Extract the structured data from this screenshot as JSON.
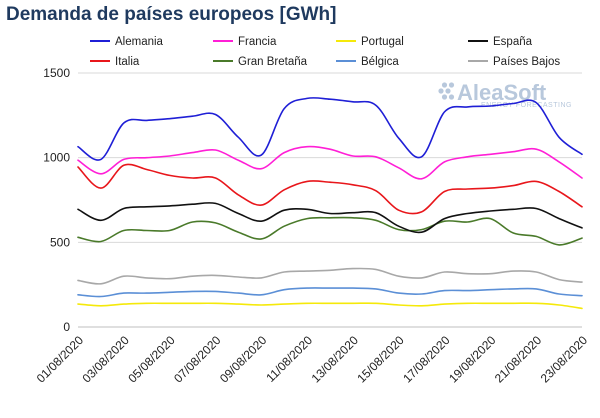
{
  "chart_data": {
    "type": "line",
    "title": "Demanda de países europeos [GWh]",
    "xlabel": "",
    "ylabel": "",
    "x": [
      "01/08/2020",
      "02/08/2020",
      "03/08/2020",
      "04/08/2020",
      "05/08/2020",
      "06/08/2020",
      "07/08/2020",
      "08/08/2020",
      "09/08/2020",
      "10/08/2020",
      "11/08/2020",
      "12/08/2020",
      "13/08/2020",
      "14/08/2020",
      "15/08/2020",
      "16/08/2020",
      "17/08/2020",
      "18/08/2020",
      "19/08/2020",
      "20/08/2020",
      "21/08/2020",
      "22/08/2020",
      "23/08/2020"
    ],
    "x_tick_labels": [
      "01/08/2020",
      "03/08/2020",
      "05/08/2020",
      "07/08/2020",
      "09/08/2020",
      "11/08/2020",
      "13/08/2020",
      "15/08/2020",
      "17/08/2020",
      "19/08/2020",
      "21/08/2020",
      "23/08/2020"
    ],
    "y_ticks": [
      0,
      500,
      1000,
      1500
    ],
    "ylim": [
      0,
      1500
    ],
    "grid": "horizontal",
    "legend_position": "top",
    "series": [
      {
        "name": "Alemania",
        "color": "#1f1fd6",
        "values": [
          1065,
          990,
          1205,
          1220,
          1230,
          1245,
          1255,
          1120,
          1015,
          1290,
          1350,
          1345,
          1330,
          1310,
          1115,
          1005,
          1270,
          1300,
          1305,
          1320,
          1325,
          1120,
          1020
        ]
      },
      {
        "name": "Francia",
        "color": "#ff1fd6",
        "values": [
          985,
          905,
          990,
          1000,
          1010,
          1030,
          1045,
          985,
          935,
          1030,
          1065,
          1050,
          1010,
          1005,
          940,
          875,
          975,
          1005,
          1020,
          1035,
          1050,
          975,
          880
        ]
      },
      {
        "name": "Portugal",
        "color": "#f5e90a",
        "values": [
          135,
          125,
          135,
          140,
          140,
          140,
          140,
          135,
          130,
          135,
          140,
          140,
          140,
          140,
          130,
          125,
          135,
          140,
          140,
          140,
          140,
          130,
          110
        ]
      },
      {
        "name": "España",
        "color": "#111111",
        "values": [
          695,
          630,
          700,
          710,
          715,
          725,
          730,
          670,
          625,
          690,
          695,
          670,
          675,
          675,
          595,
          560,
          640,
          670,
          685,
          695,
          700,
          640,
          585
        ]
      },
      {
        "name": "Italia",
        "color": "#e8161b",
        "values": [
          945,
          820,
          955,
          930,
          895,
          880,
          880,
          780,
          720,
          810,
          860,
          855,
          840,
          805,
          690,
          680,
          800,
          815,
          820,
          835,
          860,
          800,
          710
        ]
      },
      {
        "name": "Gran Bretaña",
        "color": "#4a7a2a",
        "values": [
          530,
          505,
          570,
          570,
          570,
          620,
          615,
          560,
          520,
          595,
          640,
          645,
          645,
          630,
          575,
          575,
          625,
          620,
          640,
          555,
          535,
          485,
          525
        ]
      },
      {
        "name": "Bélgica",
        "color": "#5b8fd6",
        "values": [
          190,
          180,
          200,
          200,
          205,
          210,
          210,
          200,
          190,
          220,
          230,
          230,
          230,
          225,
          200,
          195,
          215,
          215,
          220,
          225,
          225,
          195,
          185
        ]
      },
      {
        "name": "Países Bajos",
        "color": "#a8a8a8",
        "values": [
          275,
          255,
          300,
          290,
          285,
          300,
          305,
          295,
          290,
          325,
          330,
          335,
          345,
          340,
          300,
          290,
          325,
          315,
          315,
          330,
          325,
          280,
          265
        ]
      }
    ],
    "watermark": {
      "brand": "AleaSoft",
      "tagline": "ENERGY FORECASTING"
    }
  }
}
